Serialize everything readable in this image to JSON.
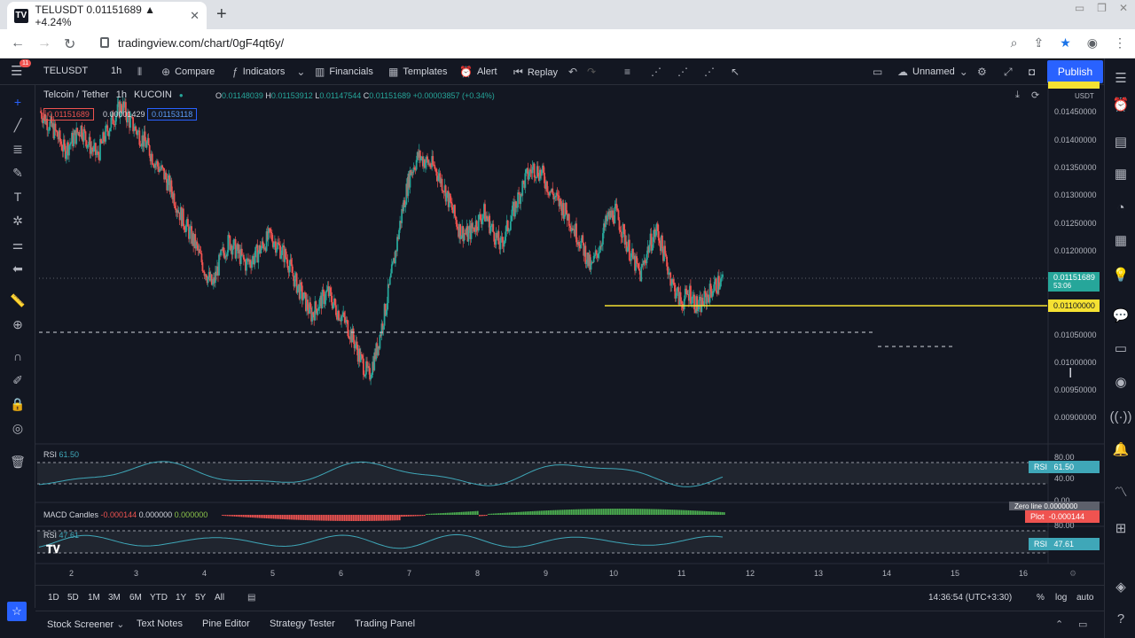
{
  "browser": {
    "tab_title": "TELUSDT 0.01151689 ▲ +4.24%",
    "tab_icon": "TV",
    "url": "tradingview.com/chart/0gF4qt6y/"
  },
  "toolbar": {
    "symbol": "TELUSDT",
    "interval": "1h",
    "compare": "Compare",
    "indicators": "Indicators",
    "financials": "Financials",
    "templates": "Templates",
    "alert": "Alert",
    "replay": "Replay",
    "layout_name": "Unnamed",
    "publish": "Publish",
    "badge": "11"
  },
  "legend": {
    "title": "Telcoin / Tether",
    "interval": "1h",
    "exchange": "KUCOIN",
    "open": "0.01148039",
    "high": "0.01153912",
    "low": "0.01147544",
    "close": "0.01151689",
    "change": "+0.00003857 (+0.34%)",
    "bid": "0.01151689",
    "spread": "0.00001429",
    "ask": "0.01153118"
  },
  "price_scale": {
    "currency": "USDT",
    "ticks": [
      "0.01450000",
      "0.01400000",
      "0.01350000",
      "0.01300000",
      "0.01250000",
      "0.01200000",
      "0.01050000",
      "0.01000000",
      "0.00950000",
      "0.00900000"
    ],
    "last_price": "0.01151689",
    "last_countdown": "53:06",
    "line_price": "0.01100000"
  },
  "panes": {
    "rsi1": {
      "label": "RSI",
      "value": "61.50",
      "ticks": [
        "80.00",
        "40.00",
        "0.00"
      ]
    },
    "macd": {
      "label": "MACD Candles",
      "v1": "-0.000144",
      "v2": "0.000000",
      "v3": "0.000000",
      "zero_line": "Zero line",
      "zero_value": "0.0000000",
      "plot": "Plot",
      "plot_value": "-0.000144"
    },
    "rsi2": {
      "label": "RSI",
      "value": "47.61",
      "tick": "80.00"
    }
  },
  "time_axis": [
    "2",
    "3",
    "4",
    "5",
    "6",
    "7",
    "8",
    "9",
    "10",
    "11",
    "12",
    "13",
    "14",
    "15",
    "16"
  ],
  "bottom": {
    "ranges": [
      "1D",
      "5D",
      "1M",
      "3M",
      "6M",
      "YTD",
      "1Y",
      "5Y",
      "All"
    ],
    "clock": "14:36:54 (UTC+3:30)",
    "pct": "%",
    "log": "log",
    "auto": "auto"
  },
  "panels": [
    "Stock Screener",
    "Text Notes",
    "Pine Editor",
    "Strategy Tester",
    "Trading Panel"
  ],
  "colors": {
    "up": "#26a69a",
    "down": "#ef5350",
    "line": "#f5e132",
    "publish": "#2962ff"
  },
  "chart_data": {
    "type": "candlestick",
    "series_close": [
      0.0145,
      0.0143,
      0.0141,
      0.0138,
      0.014,
      0.0142,
      0.0139,
      0.0137,
      0.0141,
      0.0144,
      0.0146,
      0.0143,
      0.0141,
      0.0139,
      0.0136,
      0.0134,
      0.0131,
      0.0127,
      0.0124,
      0.0121,
      0.0117,
      0.0114,
      0.0119,
      0.0122,
      0.012,
      0.0118,
      0.0119,
      0.0121,
      0.0123,
      0.0121,
      0.0119,
      0.0115,
      0.0112,
      0.0109,
      0.0111,
      0.0113,
      0.011,
      0.0108,
      0.0105,
      0.0101,
      0.0098,
      0.0103,
      0.011,
      0.0118,
      0.0127,
      0.0134,
      0.0137,
      0.0136,
      0.0135,
      0.0132,
      0.0128,
      0.0124,
      0.0123,
      0.0125,
      0.0127,
      0.0124,
      0.0121,
      0.0125,
      0.0129,
      0.0133,
      0.0135,
      0.0134,
      0.0131,
      0.0129,
      0.0127,
      0.0124,
      0.0121,
      0.0117,
      0.0121,
      0.0126,
      0.0127,
      0.0123,
      0.0119,
      0.0116,
      0.0121,
      0.0124,
      0.0119,
      0.0114,
      0.0111,
      0.0113,
      0.011,
      0.0112,
      0.0114,
      0.0115
    ],
    "ylim": [
      0.0087,
      0.0149
    ],
    "horizontal_line": 0.011
  }
}
